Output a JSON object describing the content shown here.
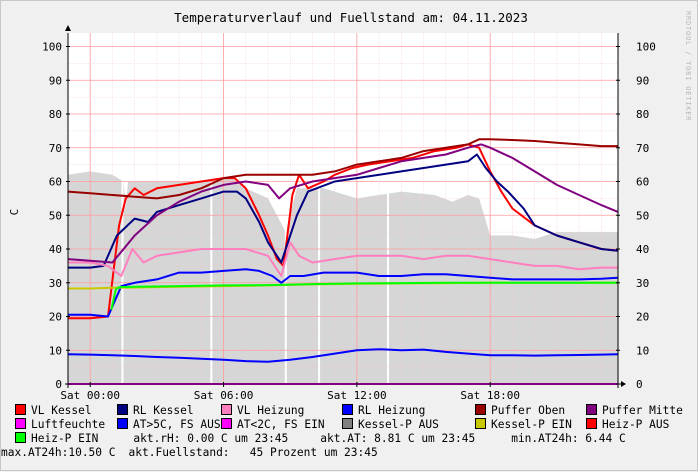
{
  "chart_data": {
    "type": "line",
    "title": "Temperaturverlauf und Fuellstand am: 04.11.2023",
    "ylabel": "C",
    "watermark": "RRDTOOL / TOBI OETIKER",
    "ylim": [
      0,
      104
    ],
    "y_ticks": [
      0,
      10,
      20,
      30,
      40,
      50,
      60,
      70,
      80,
      90,
      100
    ],
    "x_range_hours": [
      -1.0,
      23.75
    ],
    "x_ticks": [
      {
        "h": 0,
        "label": "Sat 00:00"
      },
      {
        "h": 6,
        "label": "Sat 06:00"
      },
      {
        "h": 12,
        "label": "Sat 12:00"
      },
      {
        "h": 18,
        "label": "Sat 18:00"
      }
    ],
    "grid": true,
    "fill_level_percent": {
      "name": "Fuellstand",
      "color": "#d6d6d6",
      "points": [
        [
          -1,
          62
        ],
        [
          0,
          63
        ],
        [
          1,
          62
        ],
        [
          1.5,
          60
        ],
        [
          1.6,
          52
        ],
        [
          1.7,
          60
        ],
        [
          3,
          60
        ],
        [
          5,
          60
        ],
        [
          5.6,
          61
        ],
        [
          6.4,
          61
        ],
        [
          7,
          58
        ],
        [
          8,
          55
        ],
        [
          8.8,
          45
        ],
        [
          9.3,
          58
        ],
        [
          10.5,
          58
        ],
        [
          12,
          55
        ],
        [
          14,
          57
        ],
        [
          15.5,
          56
        ],
        [
          16.3,
          54
        ],
        [
          17,
          56
        ],
        [
          17.5,
          55
        ],
        [
          18,
          44
        ],
        [
          19,
          44
        ],
        [
          20,
          43
        ],
        [
          21,
          45
        ],
        [
          22,
          45
        ],
        [
          23.75,
          45
        ]
      ]
    },
    "white_gaps_hours": [
      1.45,
      5.45,
      8.8,
      10.3,
      13.4
    ],
    "series": [
      {
        "name": "VL Kessel",
        "color": "#ff0000",
        "points": [
          [
            -1,
            19.5
          ],
          [
            0,
            19.5
          ],
          [
            0.8,
            20
          ],
          [
            1.3,
            47
          ],
          [
            1.6,
            55
          ],
          [
            2,
            58
          ],
          [
            2.4,
            56
          ],
          [
            3,
            58
          ],
          [
            4,
            59
          ],
          [
            5,
            60
          ],
          [
            6,
            61
          ],
          [
            6.5,
            61
          ],
          [
            7,
            58
          ],
          [
            7.6,
            50
          ],
          [
            8,
            44
          ],
          [
            8.4,
            37
          ],
          [
            8.7,
            35
          ],
          [
            9.1,
            56
          ],
          [
            9.4,
            62
          ],
          [
            9.8,
            58
          ],
          [
            10.5,
            60
          ],
          [
            11,
            62
          ],
          [
            11.8,
            64
          ],
          [
            12.5,
            65
          ],
          [
            13.5,
            66
          ],
          [
            14.5,
            67
          ],
          [
            15.5,
            69
          ],
          [
            16.5,
            70
          ],
          [
            17,
            71
          ],
          [
            17.5,
            70
          ],
          [
            18,
            63
          ],
          [
            18.5,
            57
          ],
          [
            19,
            52
          ],
          [
            20,
            47
          ],
          [
            21,
            44
          ],
          [
            22,
            42
          ],
          [
            23,
            40
          ],
          [
            23.75,
            39.5
          ]
        ]
      },
      {
        "name": "RL Kessel",
        "color": "#000080",
        "points": [
          [
            -1,
            34.5
          ],
          [
            0,
            34.5
          ],
          [
            0.6,
            35
          ],
          [
            1.2,
            44
          ],
          [
            2,
            49
          ],
          [
            2.6,
            48
          ],
          [
            3,
            51
          ],
          [
            4,
            53
          ],
          [
            5,
            55
          ],
          [
            6,
            57
          ],
          [
            6.6,
            57
          ],
          [
            7,
            55
          ],
          [
            7.6,
            48
          ],
          [
            8,
            42
          ],
          [
            8.6,
            36
          ],
          [
            9.3,
            50
          ],
          [
            9.8,
            57
          ],
          [
            11,
            60
          ],
          [
            12,
            61
          ],
          [
            13,
            62
          ],
          [
            14,
            63
          ],
          [
            15,
            64
          ],
          [
            16,
            65
          ],
          [
            17,
            66
          ],
          [
            17.4,
            68
          ],
          [
            17.8,
            64
          ],
          [
            18.3,
            60
          ],
          [
            18.8,
            57
          ],
          [
            19.5,
            52
          ],
          [
            20,
            47
          ],
          [
            21,
            44
          ],
          [
            22,
            42
          ],
          [
            23,
            40
          ],
          [
            23.75,
            39.5
          ]
        ]
      },
      {
        "name": "VL Heizung",
        "color": "#ff7fbf",
        "points": [
          [
            -1,
            36
          ],
          [
            0,
            36
          ],
          [
            0.8,
            35
          ],
          [
            1.4,
            32
          ],
          [
            1.9,
            40
          ],
          [
            2.4,
            36
          ],
          [
            3,
            38
          ],
          [
            4,
            39
          ],
          [
            5,
            40
          ],
          [
            6,
            40
          ],
          [
            7,
            40
          ],
          [
            8,
            38
          ],
          [
            8.6,
            32
          ],
          [
            9,
            42
          ],
          [
            9.4,
            38
          ],
          [
            10,
            36
          ],
          [
            11,
            37
          ],
          [
            12,
            38
          ],
          [
            13,
            38
          ],
          [
            14,
            38
          ],
          [
            15,
            37
          ],
          [
            16,
            38
          ],
          [
            17,
            38
          ],
          [
            18,
            37
          ],
          [
            19,
            36
          ],
          [
            20,
            35
          ],
          [
            21,
            35
          ],
          [
            22,
            34
          ],
          [
            23,
            34.5
          ],
          [
            23.75,
            34.5
          ]
        ]
      },
      {
        "name": "RL Heizung",
        "color": "#0000ff",
        "points": [
          [
            -1,
            20.5
          ],
          [
            0,
            20.5
          ],
          [
            0.8,
            20
          ],
          [
            1.4,
            29
          ],
          [
            2,
            30
          ],
          [
            3,
            31
          ],
          [
            4,
            33
          ],
          [
            5,
            33
          ],
          [
            6,
            33.5
          ],
          [
            7,
            34
          ],
          [
            7.6,
            33.5
          ],
          [
            8.2,
            32
          ],
          [
            8.6,
            30
          ],
          [
            9,
            32
          ],
          [
            9.6,
            32
          ],
          [
            10.5,
            33
          ],
          [
            12,
            33
          ],
          [
            13,
            32
          ],
          [
            14,
            32
          ],
          [
            15,
            32.5
          ],
          [
            16,
            32.5
          ],
          [
            17,
            32
          ],
          [
            18,
            31.5
          ],
          [
            19,
            31
          ],
          [
            20,
            31
          ],
          [
            21,
            31
          ],
          [
            22,
            31
          ],
          [
            23,
            31.2
          ],
          [
            23.75,
            31.5
          ]
        ]
      },
      {
        "name": "Puffer Oben",
        "color": "#990000",
        "points": [
          [
            -1,
            57
          ],
          [
            0,
            56.5
          ],
          [
            1,
            56
          ],
          [
            2,
            55.5
          ],
          [
            3,
            55
          ],
          [
            4,
            56
          ],
          [
            5,
            58
          ],
          [
            6,
            61
          ],
          [
            7,
            62
          ],
          [
            8,
            62
          ],
          [
            9,
            62
          ],
          [
            10,
            62
          ],
          [
            11,
            63
          ],
          [
            12,
            65
          ],
          [
            13,
            66
          ],
          [
            14,
            67
          ],
          [
            15,
            69
          ],
          [
            16,
            70
          ],
          [
            17,
            71
          ],
          [
            17.5,
            72.5
          ],
          [
            18,
            72.5
          ],
          [
            19,
            72.3
          ],
          [
            20,
            72
          ],
          [
            21,
            71.5
          ],
          [
            22,
            71
          ],
          [
            23,
            70.5
          ],
          [
            23.75,
            70.5
          ]
        ]
      },
      {
        "name": "Puffer Mitte",
        "color": "#800080",
        "points": [
          [
            -1,
            37
          ],
          [
            0,
            36.5
          ],
          [
            1,
            36
          ],
          [
            1.5,
            40
          ],
          [
            2,
            44
          ],
          [
            3,
            50
          ],
          [
            4,
            54
          ],
          [
            5,
            57
          ],
          [
            6,
            59
          ],
          [
            7,
            60
          ],
          [
            8,
            59
          ],
          [
            8.5,
            55
          ],
          [
            9,
            58
          ],
          [
            10,
            60
          ],
          [
            11,
            61
          ],
          [
            12,
            62
          ],
          [
            13,
            64
          ],
          [
            14,
            66
          ],
          [
            15,
            67
          ],
          [
            16,
            68
          ],
          [
            17,
            70
          ],
          [
            17.6,
            71
          ],
          [
            18,
            70
          ],
          [
            19,
            67
          ],
          [
            20,
            63
          ],
          [
            21,
            59
          ],
          [
            22,
            56
          ],
          [
            23,
            53
          ],
          [
            23.75,
            51
          ]
        ]
      },
      {
        "name": "Luftfeuchte",
        "color": "#ff00ff",
        "points": [
          [
            -1,
            0
          ],
          [
            23.75,
            0
          ]
        ]
      },
      {
        "name": "AT>5C, FS AUS",
        "color": "#0000ff",
        "points": [
          [
            -1,
            8.8
          ],
          [
            0,
            8.7
          ],
          [
            1,
            8.5
          ],
          [
            2,
            8.3
          ],
          [
            3,
            8.0
          ],
          [
            4,
            7.8
          ],
          [
            5,
            7.5
          ],
          [
            6,
            7.2
          ],
          [
            7,
            6.8
          ],
          [
            8,
            6.6
          ],
          [
            9,
            7.2
          ],
          [
            10,
            8.0
          ],
          [
            11,
            9.0
          ],
          [
            12,
            10.0
          ],
          [
            13,
            10.3
          ],
          [
            14,
            10.0
          ],
          [
            15,
            10.2
          ],
          [
            16,
            9.5
          ],
          [
            17,
            9.0
          ],
          [
            18,
            8.5
          ],
          [
            19,
            8.5
          ],
          [
            20,
            8.4
          ],
          [
            21,
            8.5
          ],
          [
            22,
            8.6
          ],
          [
            23,
            8.7
          ],
          [
            23.75,
            8.8
          ]
        ]
      },
      {
        "name": "AT<2C, FS EIN",
        "color": "#ff00ff",
        "points": []
      },
      {
        "name": "Kessel-P AUS",
        "color": "#808080",
        "points": []
      },
      {
        "name": "Kessel-P EIN",
        "color": "#c8c800",
        "points": [
          [
            -1,
            28.3
          ],
          [
            0,
            28.3
          ],
          [
            1,
            28.5
          ],
          [
            2,
            28.6
          ],
          [
            4,
            28.8
          ],
          [
            6,
            29
          ],
          [
            8,
            29.2
          ],
          [
            10,
            29.5
          ],
          [
            12,
            29.7
          ],
          [
            14,
            29.8
          ],
          [
            16,
            29.9
          ],
          [
            18,
            30
          ],
          [
            20,
            30
          ],
          [
            22,
            30
          ],
          [
            23.75,
            30
          ]
        ]
      },
      {
        "name": "Heiz-P AUS",
        "color": "#ff0000",
        "points": []
      },
      {
        "name": "Heiz-P EIN",
        "color": "#00ff00",
        "points": [
          [
            0.95,
            22
          ],
          [
            1.05,
            25
          ],
          [
            1.15,
            28
          ],
          [
            1.3,
            28.7
          ],
          [
            2,
            28.8
          ],
          [
            4,
            29
          ],
          [
            6,
            29.2
          ],
          [
            8,
            29.3
          ],
          [
            10,
            29.6
          ],
          [
            12,
            29.8
          ],
          [
            14,
            29.9
          ],
          [
            16,
            30
          ],
          [
            18,
            30
          ],
          [
            20,
            30
          ],
          [
            22,
            30
          ],
          [
            23.75,
            30
          ]
        ]
      }
    ]
  },
  "legend_rows": [
    [
      {
        "name": "VL Kessel",
        "color": "#ff0000"
      },
      {
        "name": "RL Kessel",
        "color": "#000080"
      },
      {
        "name": "VL Heizung",
        "color": "#ff7fbf"
      },
      {
        "name": "RL Heizung",
        "color": "#0000ff"
      },
      {
        "name": "Puffer Oben",
        "color": "#990000"
      },
      {
        "name": "Puffer Mitte",
        "color": "#800080"
      }
    ],
    [
      {
        "name": "Luftfeuchte",
        "color": "#ff00ff"
      },
      {
        "name": "AT>5C, FS AUS",
        "color": "#0000ff"
      },
      {
        "name": "AT<2C, FS EIN",
        "color": "#ff00ff"
      },
      {
        "name": "Kessel-P AUS",
        "color": "#808080"
      },
      {
        "name": "Kessel-P EIN",
        "color": "#c8c800"
      },
      {
        "name": "Heiz-P AUS",
        "color": "#ff0000"
      }
    ]
  ],
  "legend_row3_item": {
    "name": "Heiz-P EIN",
    "color": "#00ff00"
  },
  "stats": {
    "rh": "akt.rH: 0.00 C um 23:45",
    "at": "akt.AT: 8.81 C um 23:45",
    "min_at": "min.AT24h: 6.44 C",
    "max_at": "max.AT24h:10.50 C",
    "fill": "akt.Fuellstand:   45 Prozent um 23:45"
  }
}
